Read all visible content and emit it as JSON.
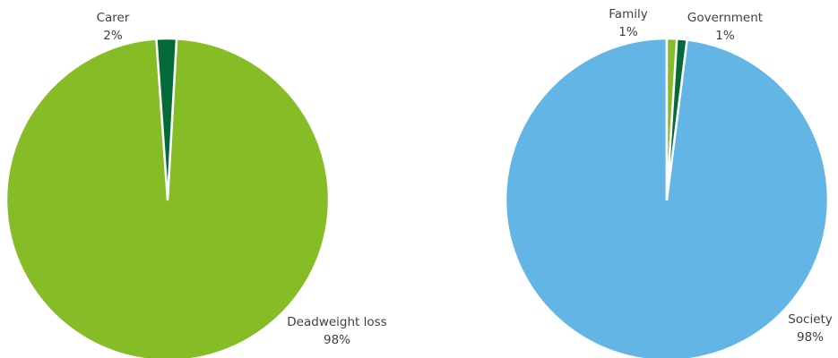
{
  "chart_data": [
    {
      "type": "pie",
      "title": "",
      "slices": [
        {
          "label": "Deadweight loss",
          "value": 98,
          "value_label": "98%",
          "color": "#86bc25"
        },
        {
          "label": "Carer",
          "value": 2,
          "value_label": "2%",
          "color": "#046a38"
        }
      ]
    },
    {
      "type": "pie",
      "title": "",
      "slices": [
        {
          "label": "Society",
          "value": 98,
          "value_label": "98%",
          "color": "#62b5e5"
        },
        {
          "label": "Family",
          "value": 1,
          "value_label": "1%",
          "color": "#86bc25"
        },
        {
          "label": "Government",
          "value": 1,
          "value_label": "1%",
          "color": "#046a38"
        }
      ]
    }
  ]
}
